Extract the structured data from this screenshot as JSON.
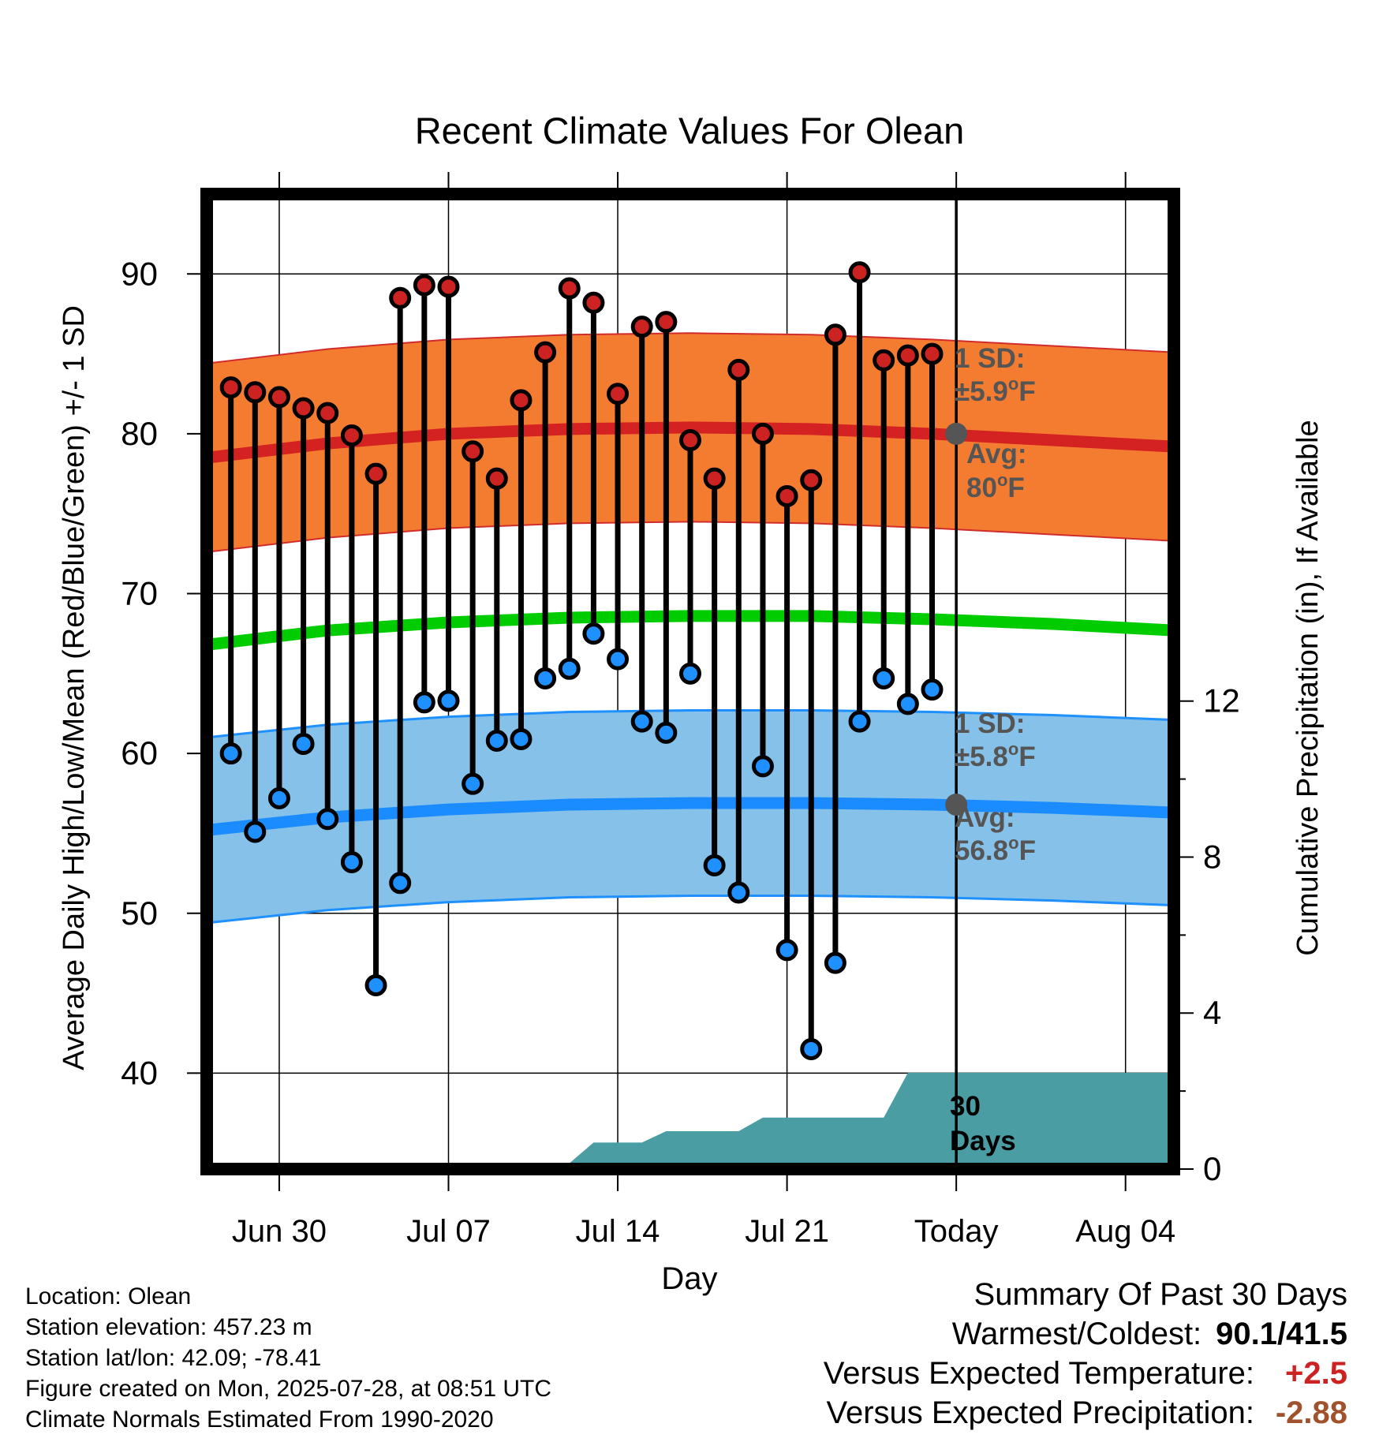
{
  "chart_data": {
    "type": "line",
    "title": "Recent Climate Values For Olean",
    "xlabel": "Day",
    "ylabel": "Average Daily High/Low/Mean (Red/Blue/Green) +/- 1 SD",
    "y2label": "Cumulative Precipitation (in), If Available",
    "xlim": [
      "2025-06-27",
      "2025-08-06"
    ],
    "ylim": [
      34,
      95
    ],
    "y2lim": [
      0,
      25
    ],
    "x_ticks": [
      {
        "date": "2025-06-30",
        "label": "Jun 30"
      },
      {
        "date": "2025-07-07",
        "label": "Jul 07"
      },
      {
        "date": "2025-07-14",
        "label": "Jul 14"
      },
      {
        "date": "2025-07-21",
        "label": "Jul 21"
      },
      {
        "date": "2025-07-28",
        "label": "Today"
      },
      {
        "date": "2025-08-04",
        "label": "Aug 04"
      }
    ],
    "y_ticks": [
      40,
      50,
      60,
      70,
      80,
      90
    ],
    "y2_ticks": [
      0,
      4,
      8,
      12
    ],
    "grid": true,
    "today": "2025-07-28",
    "dates": [
      "2025-06-28",
      "2025-06-29",
      "2025-06-30",
      "2025-07-01",
      "2025-07-02",
      "2025-07-03",
      "2025-07-04",
      "2025-07-05",
      "2025-07-06",
      "2025-07-07",
      "2025-07-08",
      "2025-07-09",
      "2025-07-10",
      "2025-07-11",
      "2025-07-12",
      "2025-07-13",
      "2025-07-14",
      "2025-07-15",
      "2025-07-16",
      "2025-07-17",
      "2025-07-18",
      "2025-07-19",
      "2025-07-20",
      "2025-07-21",
      "2025-07-22",
      "2025-07-23",
      "2025-07-24",
      "2025-07-25",
      "2025-07-26",
      "2025-07-27"
    ],
    "series": [
      {
        "name": "High",
        "color": "#cc2222",
        "values": [
          82.9,
          82.6,
          82.3,
          81.6,
          81.3,
          79.9,
          77.5,
          88.5,
          89.3,
          89.2,
          78.9,
          77.2,
          82.1,
          85.1,
          89.1,
          88.2,
          82.5,
          86.7,
          87.0,
          79.6,
          77.2,
          84.0,
          80.0,
          76.1,
          77.1,
          86.2,
          90.1,
          84.6,
          84.9,
          85.0
        ]
      },
      {
        "name": "Low",
        "color": "#1e90ff",
        "values": [
          60.0,
          55.1,
          57.2,
          60.6,
          55.9,
          53.2,
          45.5,
          51.9,
          63.2,
          63.3,
          58.1,
          60.8,
          60.9,
          64.7,
          65.3,
          67.5,
          65.9,
          62.0,
          61.3,
          65.0,
          53.0,
          51.3,
          59.2,
          47.7,
          41.5,
          46.9,
          62.0,
          64.7,
          63.1,
          64.0
        ]
      }
    ],
    "normals": {
      "dates": [
        "2025-06-27",
        "2025-07-02",
        "2025-07-07",
        "2025-07-12",
        "2025-07-17",
        "2025-07-22",
        "2025-07-27",
        "2025-08-01",
        "2025-08-06"
      ],
      "avg_high": [
        78.5,
        79.4,
        80.0,
        80.3,
        80.4,
        80.3,
        80.0,
        79.6,
        79.2
      ],
      "avg_low": [
        55.2,
        56.0,
        56.5,
        56.8,
        56.9,
        56.9,
        56.8,
        56.6,
        56.3
      ],
      "avg_mean": [
        66.8,
        67.7,
        68.2,
        68.5,
        68.6,
        68.6,
        68.4,
        68.1,
        67.7
      ],
      "high_sd": 5.9,
      "low_sd": 5.8
    },
    "precipitation": {
      "dates": [
        "2025-06-27",
        "2025-07-06",
        "2025-07-07",
        "2025-07-12",
        "2025-07-13",
        "2025-07-15",
        "2025-07-16",
        "2025-07-19",
        "2025-07-20",
        "2025-07-25",
        "2025-07-26",
        "2025-08-06"
      ],
      "cumulative_in": [
        0.0,
        0.0,
        0.15,
        0.15,
        0.68,
        0.68,
        0.97,
        0.97,
        1.32,
        1.32,
        2.47,
        2.47
      ],
      "color": "#4a9da3"
    },
    "annotations": {
      "high_sd_label": "1 SD:",
      "high_sd_value": "±5.9°F",
      "high_avg_label": "Avg:",
      "high_avg_value": "80°F",
      "low_sd_label": "1 SD:",
      "low_sd_value": "±5.8°F",
      "low_avg_label": "Avg:",
      "low_avg_value": "56.8°F",
      "days_label_1": "30",
      "days_label_2": "Days"
    },
    "colors": {
      "high_band": "#f47c30",
      "high_band_edge": "#d22b2b",
      "high_avg_line": "#d42222",
      "low_band": "#85c1e9",
      "low_band_edge": "#1e90ff",
      "low_avg_line": "#1a8cff",
      "mean_line": "#00cc00",
      "today_marker": "#555555",
      "annotation_text": "#555555"
    }
  },
  "footer": {
    "location": "Location: Olean",
    "elevation": "Station elevation: 457.23 m",
    "latlon": "Station lat/lon: 42.09; -78.41",
    "created": "Figure created on Mon, 2025-07-28, at 08:51 UTC",
    "normals": "Climate Normals Estimated From 1990-2020"
  },
  "summary": {
    "title": "Summary Of Past 30 Days",
    "warm_cold_label": "Warmest/Coldest:",
    "warm_cold_value": "90.1/41.5",
    "temp_label": "Versus Expected Temperature:",
    "temp_value": "+2.5",
    "temp_color": "#cc2222",
    "precip_label": "Versus Expected Precipitation:",
    "precip_value": "-2.88",
    "precip_color": "#a0522d"
  }
}
